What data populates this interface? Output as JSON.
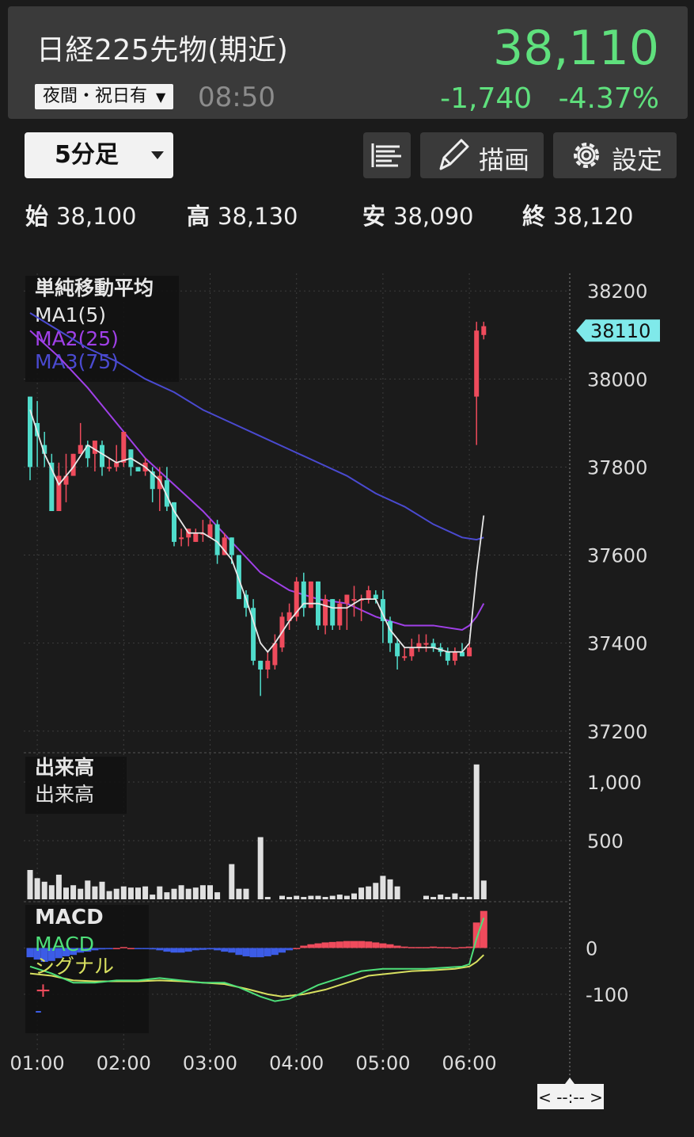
{
  "header": {
    "title": "日経225先物(期近)",
    "session_label": "夜間・祝日有",
    "time": "08:50",
    "price": "38,110",
    "change": "-1,740",
    "change_pct": "-4.37%"
  },
  "toolbar": {
    "interval": "5分足",
    "draw_label": "描画",
    "settings_label": "設定"
  },
  "ohlc": {
    "open_label": "始",
    "open": "38,100",
    "high_label": "高",
    "high": "38,130",
    "low_label": "安",
    "low": "38,090",
    "close_label": "終",
    "close": "38,120"
  },
  "colors": {
    "up": "#ef4b5c",
    "down": "#50dccb",
    "ma1": "#e8e8e8",
    "ma2": "#a040e8",
    "ma3": "#4a4ad0",
    "macd": "#4ee07a",
    "signal": "#d8e060",
    "price_green": "#5fe07d",
    "price_tag": "#7fe9ea"
  },
  "chart_data": {
    "type": "candlestick",
    "price_panel": {
      "title": "単純移動平均",
      "legend": [
        "MA1(5)",
        "MA2(25)",
        "MA3(75)"
      ],
      "ylim": [
        37160,
        38240
      ],
      "yticks": [
        "38200",
        "38000",
        "37800",
        "37600",
        "37400",
        "37200"
      ],
      "last_price_tag": "38110",
      "candles": [
        [
          37960,
          37960,
          37770,
          37800
        ],
        [
          37900,
          37950,
          37800,
          37870
        ],
        [
          37850,
          37880,
          37800,
          37830
        ],
        [
          37810,
          37830,
          37700,
          37700
        ],
        [
          37700,
          37810,
          37700,
          37780
        ],
        [
          37760,
          37830,
          37720,
          37780
        ],
        [
          37780,
          37830,
          37780,
          37830
        ],
        [
          37830,
          37900,
          37830,
          37850
        ],
        [
          37850,
          37860,
          37800,
          37820
        ],
        [
          37830,
          37850,
          37790,
          37860
        ],
        [
          37850,
          37860,
          37780,
          37800
        ],
        [
          37800,
          37820,
          37790,
          37800
        ],
        [
          37800,
          37850,
          37790,
          37810
        ],
        [
          37810,
          37880,
          37800,
          37880
        ],
        [
          37840,
          37840,
          37780,
          37800
        ],
        [
          37800,
          37800,
          37790,
          37790
        ],
        [
          37790,
          37820,
          37780,
          37810
        ],
        [
          37790,
          37800,
          37720,
          37750
        ],
        [
          37750,
          37800,
          37700,
          37780
        ],
        [
          37770,
          37800,
          37700,
          37710
        ],
        [
          37720,
          37720,
          37620,
          37630
        ],
        [
          37640,
          37660,
          37620,
          37640
        ],
        [
          37640,
          37650,
          37620,
          37660
        ],
        [
          37630,
          37660,
          37630,
          37650
        ],
        [
          37650,
          37680,
          37630,
          37650
        ],
        [
          37640,
          37680,
          37640,
          37670
        ],
        [
          37670,
          37680,
          37580,
          37600
        ],
        [
          37600,
          37650,
          37600,
          37640
        ],
        [
          37640,
          37640,
          37580,
          37600
        ],
        [
          37600,
          37600,
          37500,
          37500
        ],
        [
          37510,
          37520,
          37460,
          37480
        ],
        [
          37480,
          37500,
          37350,
          37360
        ],
        [
          37360,
          37360,
          37280,
          37340
        ],
        [
          37340,
          37380,
          37320,
          37360
        ],
        [
          37350,
          37420,
          37340,
          37400
        ],
        [
          37390,
          37470,
          37380,
          37460
        ],
        [
          37450,
          37490,
          37430,
          37470
        ],
        [
          37460,
          37550,
          37450,
          37540
        ],
        [
          37540,
          37560,
          37460,
          37480
        ],
        [
          37480,
          37540,
          37480,
          37540
        ],
        [
          37540,
          37540,
          37430,
          37440
        ],
        [
          37440,
          37510,
          37420,
          37500
        ],
        [
          37500,
          37500,
          37430,
          37440
        ],
        [
          37440,
          37500,
          37430,
          37490
        ],
        [
          37490,
          37510,
          37430,
          37510
        ],
        [
          37500,
          37530,
          37460,
          37500
        ],
        [
          37500,
          37510,
          37450,
          37500
        ],
        [
          37500,
          37530,
          37490,
          37520
        ],
        [
          37510,
          37520,
          37490,
          37500
        ],
        [
          37500,
          37520,
          37400,
          37450
        ],
        [
          37450,
          37460,
          37380,
          37400
        ],
        [
          37400,
          37410,
          37340,
          37370
        ],
        [
          37370,
          37390,
          37360,
          37370
        ],
        [
          37370,
          37410,
          37360,
          37390
        ],
        [
          37390,
          37420,
          37380,
          37400
        ],
        [
          37400,
          37420,
          37380,
          37400
        ],
        [
          37400,
          37410,
          37380,
          37390
        ],
        [
          37390,
          37400,
          37370,
          37380
        ],
        [
          37380,
          37390,
          37350,
          37360
        ],
        [
          37360,
          37390,
          37350,
          37380
        ],
        [
          37380,
          37400,
          37370,
          37370
        ],
        [
          37370,
          37400,
          37370,
          37390
        ],
        [
          37960,
          38130,
          37850,
          38110
        ],
        [
          38100,
          38130,
          38090,
          38120
        ]
      ],
      "ma1": [
        [
          0,
          37930
        ],
        [
          2,
          37830
        ],
        [
          4,
          37760
        ],
        [
          6,
          37800
        ],
        [
          8,
          37850
        ],
        [
          10,
          37830
        ],
        [
          12,
          37810
        ],
        [
          14,
          37820
        ],
        [
          16,
          37800
        ],
        [
          18,
          37770
        ],
        [
          20,
          37700
        ],
        [
          22,
          37650
        ],
        [
          24,
          37650
        ],
        [
          26,
          37630
        ],
        [
          28,
          37590
        ],
        [
          30,
          37500
        ],
        [
          31,
          37450
        ],
        [
          32,
          37400
        ],
        [
          33,
          37380
        ],
        [
          34,
          37400
        ],
        [
          36,
          37450
        ],
        [
          38,
          37490
        ],
        [
          40,
          37490
        ],
        [
          42,
          37480
        ],
        [
          44,
          37480
        ],
        [
          46,
          37500
        ],
        [
          48,
          37500
        ],
        [
          50,
          37430
        ],
        [
          52,
          37390
        ],
        [
          54,
          37390
        ],
        [
          56,
          37390
        ],
        [
          58,
          37380
        ],
        [
          60,
          37380
        ],
        [
          61,
          37400
        ],
        [
          62,
          37560
        ],
        [
          63,
          37690
        ]
      ],
      "ma2": [
        [
          0,
          38110
        ],
        [
          4,
          38050
        ],
        [
          8,
          37980
        ],
        [
          12,
          37900
        ],
        [
          16,
          37820
        ],
        [
          20,
          37760
        ],
        [
          24,
          37700
        ],
        [
          28,
          37630
        ],
        [
          32,
          37560
        ],
        [
          36,
          37520
        ],
        [
          40,
          37500
        ],
        [
          44,
          37490
        ],
        [
          48,
          37460
        ],
        [
          52,
          37440
        ],
        [
          56,
          37440
        ],
        [
          60,
          37430
        ],
        [
          61,
          37440
        ],
        [
          62,
          37460
        ],
        [
          63,
          37490
        ]
      ],
      "ma3": [
        [
          0,
          38150
        ],
        [
          4,
          38110
        ],
        [
          8,
          38070
        ],
        [
          12,
          38040
        ],
        [
          16,
          38000
        ],
        [
          20,
          37970
        ],
        [
          24,
          37930
        ],
        [
          28,
          37900
        ],
        [
          32,
          37870
        ],
        [
          36,
          37840
        ],
        [
          40,
          37810
        ],
        [
          44,
          37780
        ],
        [
          48,
          37740
        ],
        [
          52,
          37710
        ],
        [
          56,
          37670
        ],
        [
          60,
          37640
        ],
        [
          62,
          37635
        ],
        [
          63,
          37640
        ]
      ]
    },
    "volume_panel": {
      "title": "出来高",
      "legend": [
        "出来高"
      ],
      "ylim": [
        0,
        1250
      ],
      "yticks": [
        "1,000",
        "500"
      ],
      "values": [
        250,
        180,
        150,
        120,
        210,
        100,
        120,
        90,
        160,
        110,
        150,
        70,
        90,
        110,
        100,
        100,
        110,
        40,
        110,
        60,
        90,
        120,
        90,
        100,
        120,
        120,
        60,
        0,
        300,
        90,
        90,
        0,
        530,
        20,
        0,
        30,
        20,
        30,
        20,
        30,
        30,
        20,
        30,
        40,
        30,
        50,
        100,
        110,
        140,
        200,
        170,
        110,
        0,
        0,
        0,
        30,
        20,
        40,
        20,
        50,
        20,
        20,
        1150,
        160
      ]
    },
    "macd_panel": {
      "title": "MACD",
      "legend": [
        "MACD",
        "シグナル"
      ],
      "plus_label": "+",
      "minus_label": "-",
      "ylim": [
        -220,
        100
      ],
      "yticks": [
        "0",
        "-100"
      ],
      "histogram": [
        -20,
        -25,
        -30,
        -28,
        -22,
        -18,
        -15,
        -10,
        -8,
        -5,
        -3,
        -2,
        0,
        2,
        0,
        -1,
        -2,
        -3,
        -5,
        -8,
        -10,
        -10,
        -8,
        -5,
        -4,
        -3,
        -5,
        -8,
        -10,
        -15,
        -18,
        -20,
        -20,
        -18,
        -15,
        -10,
        -5,
        0,
        5,
        8,
        10,
        12,
        13,
        14,
        15,
        15,
        15,
        14,
        12,
        10,
        8,
        5,
        3,
        2,
        2,
        2,
        3,
        2,
        2,
        1,
        2,
        3,
        55,
        80
      ],
      "macd": [
        [
          0,
          -40
        ],
        [
          3,
          -55
        ],
        [
          6,
          -75
        ],
        [
          9,
          -75
        ],
        [
          12,
          -70
        ],
        [
          15,
          -70
        ],
        [
          18,
          -65
        ],
        [
          21,
          -70
        ],
        [
          24,
          -75
        ],
        [
          27,
          -75
        ],
        [
          29,
          -85
        ],
        [
          32,
          -105
        ],
        [
          34,
          -115
        ],
        [
          36,
          -110
        ],
        [
          38,
          -95
        ],
        [
          40,
          -80
        ],
        [
          43,
          -65
        ],
        [
          46,
          -50
        ],
        [
          49,
          -45
        ],
        [
          52,
          -45
        ],
        [
          55,
          -45
        ],
        [
          58,
          -42
        ],
        [
          60,
          -40
        ],
        [
          61,
          -35
        ],
        [
          62,
          20
        ],
        [
          63,
          65
        ]
      ],
      "signal": [
        [
          0,
          -55
        ],
        [
          3,
          -60
        ],
        [
          6,
          -70
        ],
        [
          9,
          -72
        ],
        [
          12,
          -72
        ],
        [
          15,
          -72
        ],
        [
          18,
          -70
        ],
        [
          21,
          -72
        ],
        [
          24,
          -75
        ],
        [
          27,
          -78
        ],
        [
          30,
          -88
        ],
        [
          33,
          -100
        ],
        [
          35,
          -105
        ],
        [
          38,
          -100
        ],
        [
          41,
          -90
        ],
        [
          44,
          -75
        ],
        [
          47,
          -60
        ],
        [
          50,
          -55
        ],
        [
          53,
          -50
        ],
        [
          56,
          -48
        ],
        [
          59,
          -45
        ],
        [
          61,
          -40
        ],
        [
          62,
          -30
        ],
        [
          63,
          -15
        ]
      ]
    },
    "x_ticks": [
      {
        "i": 1,
        "label": "01:00"
      },
      {
        "i": 13,
        "label": "02:00"
      },
      {
        "i": 25,
        "label": "03:00"
      },
      {
        "i": 37,
        "label": "04:00"
      },
      {
        "i": 49,
        "label": "05:00"
      },
      {
        "i": 61,
        "label": "06:00"
      }
    ],
    "cursor_label": "< --:-- >"
  }
}
